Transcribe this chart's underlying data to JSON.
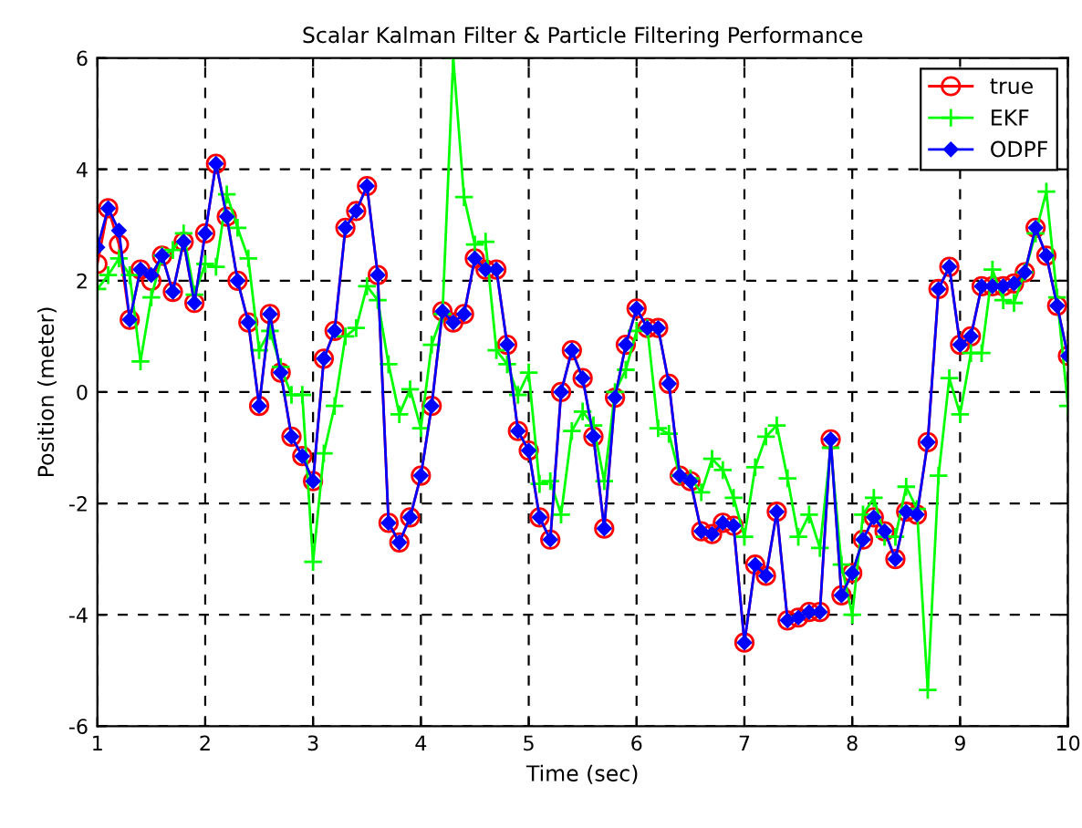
{
  "chart_data": {
    "type": "line",
    "title": "Scalar Kalman Filter & Particle Filtering Performance",
    "xlabel": "Time (sec)",
    "ylabel": "Position (meter)",
    "x": [
      1.0,
      1.1,
      1.2,
      1.3,
      1.4,
      1.5,
      1.6,
      1.7,
      1.8,
      1.9,
      2.0,
      2.1,
      2.2,
      2.3,
      2.4,
      2.5,
      2.6,
      2.7,
      2.8,
      2.9,
      3.0,
      3.1,
      3.2,
      3.3,
      3.4,
      3.5,
      3.6,
      3.7,
      3.8,
      3.9,
      4.0,
      4.1,
      4.2,
      4.3,
      4.4,
      4.5,
      4.6,
      4.7,
      4.8,
      4.9,
      5.0,
      5.1,
      5.2,
      5.3,
      5.4,
      5.5,
      5.6,
      5.7,
      5.8,
      5.9,
      6.0,
      6.1,
      6.2,
      6.3,
      6.4,
      6.5,
      6.6,
      6.7,
      6.8,
      6.9,
      7.0,
      7.1,
      7.2,
      7.3,
      7.4,
      7.5,
      7.6,
      7.7,
      7.8,
      7.9,
      8.0,
      8.1,
      8.2,
      8.3,
      8.4,
      8.5,
      8.6,
      8.7,
      8.8,
      8.9,
      9.0,
      9.1,
      9.2,
      9.3,
      9.4,
      9.5,
      9.6,
      9.7,
      9.8,
      9.9,
      10.0
    ],
    "series": [
      {
        "name": "true",
        "color": "#ff0000",
        "marker": "circle",
        "values": [
          2.3,
          3.3,
          2.65,
          1.3,
          2.2,
          2.0,
          2.45,
          1.8,
          2.7,
          1.6,
          2.85,
          4.1,
          3.15,
          2.0,
          1.25,
          -0.25,
          1.4,
          0.35,
          -0.8,
          -1.15,
          -1.6,
          0.6,
          1.1,
          2.95,
          3.25,
          3.7,
          2.1,
          -2.35,
          -2.7,
          -2.25,
          -1.5,
          -0.25,
          1.45,
          1.25,
          1.4,
          2.4,
          2.2,
          2.2,
          0.85,
          -0.7,
          -1.05,
          -2.25,
          -2.65,
          0.0,
          0.75,
          0.25,
          -0.8,
          -2.45,
          -0.1,
          0.85,
          1.5,
          1.15,
          1.15,
          0.15,
          -1.5,
          -1.6,
          -2.5,
          -2.55,
          -2.35,
          -2.4,
          -4.5,
          -3.1,
          -3.3,
          -2.15,
          -4.1,
          -4.05,
          -3.95,
          -3.95,
          -0.85,
          -3.65,
          -3.25,
          -2.65,
          -2.25,
          -2.5,
          -3.0,
          -2.15,
          -2.2,
          -0.9,
          1.85,
          2.25,
          0.85,
          1.0,
          1.9,
          1.9,
          1.9,
          1.95,
          2.15,
          2.95,
          2.45,
          1.55,
          0.65
        ]
      },
      {
        "name": "EKF",
        "color": "#00ff00",
        "marker": "cross",
        "values": [
          1.85,
          2.1,
          2.4,
          2.1,
          0.55,
          1.7,
          2.45,
          2.55,
          2.85,
          1.75,
          2.3,
          2.25,
          3.55,
          2.95,
          2.4,
          0.75,
          1.1,
          0.45,
          -0.05,
          -0.05,
          -3.05,
          -1.1,
          -0.25,
          1.0,
          1.15,
          1.9,
          1.65,
          0.5,
          -0.4,
          0.05,
          -0.65,
          0.85,
          1.4,
          6.0,
          3.5,
          2.65,
          2.7,
          0.75,
          0.5,
          -0.05,
          0.35,
          -1.65,
          -1.6,
          -2.2,
          -0.7,
          -0.35,
          -0.6,
          -1.6,
          0.0,
          0.4,
          1.1,
          1.15,
          -0.65,
          -0.75,
          -1.5,
          -1.55,
          -1.8,
          -1.2,
          -1.4,
          -1.9,
          -2.6,
          -1.35,
          -0.8,
          -0.6,
          -1.55,
          -2.6,
          -2.2,
          -2.8,
          -1.0,
          -3.1,
          -4.0,
          -2.2,
          -1.9,
          -2.6,
          -2.6,
          -1.7,
          -2.1,
          -5.35,
          -1.5,
          0.25,
          -0.4,
          0.7,
          0.7,
          2.2,
          1.65,
          1.6,
          2.15,
          2.85,
          3.6,
          1.7,
          -0.25
        ]
      },
      {
        "name": "ODPF",
        "color": "#0000ff",
        "marker": "diamond",
        "values": [
          2.6,
          3.3,
          2.9,
          1.3,
          2.2,
          2.1,
          2.45,
          1.8,
          2.7,
          1.6,
          2.85,
          4.1,
          3.15,
          2.0,
          1.25,
          -0.25,
          1.4,
          0.35,
          -0.8,
          -1.15,
          -1.6,
          0.6,
          1.1,
          2.95,
          3.25,
          3.7,
          2.1,
          -2.35,
          -2.7,
          -2.25,
          -1.5,
          -0.25,
          1.45,
          1.25,
          1.4,
          2.4,
          2.2,
          2.2,
          0.85,
          -0.7,
          -1.05,
          -2.25,
          -2.65,
          0.0,
          0.75,
          0.25,
          -0.8,
          -2.45,
          -0.1,
          0.85,
          1.5,
          1.15,
          1.15,
          0.15,
          -1.5,
          -1.6,
          -2.5,
          -2.55,
          -2.35,
          -2.4,
          -4.5,
          -3.1,
          -3.3,
          -2.15,
          -4.1,
          -4.05,
          -3.95,
          -3.95,
          -0.85,
          -3.65,
          -3.25,
          -2.65,
          -2.25,
          -2.5,
          -3.0,
          -2.15,
          -2.2,
          -0.9,
          1.85,
          2.25,
          0.85,
          1.0,
          1.9,
          1.9,
          1.9,
          1.95,
          2.15,
          2.95,
          2.45,
          1.55,
          0.65
        ]
      }
    ],
    "xlim": [
      1,
      10
    ],
    "xticks": [
      1,
      2,
      3,
      4,
      5,
      6,
      7,
      8,
      9,
      10
    ],
    "ylim": [
      -6,
      6
    ],
    "yticks": [
      -6,
      -4,
      -2,
      0,
      2,
      4,
      6
    ],
    "grid": true,
    "legend": "top right",
    "line_style": "solid"
  }
}
